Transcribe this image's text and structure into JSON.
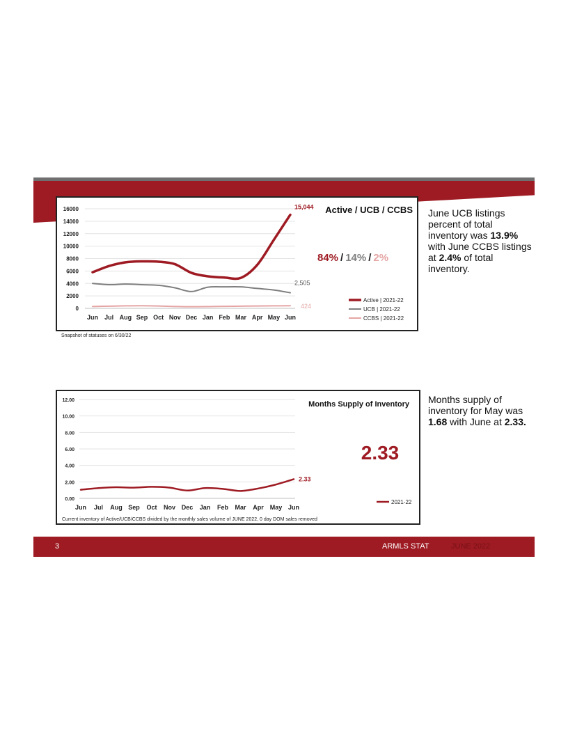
{
  "page": {
    "number": "3",
    "brand": "ARMLS STAT",
    "month": "JUNE 2022",
    "accent": "#9e1b23"
  },
  "inventory": {
    "note": "Snapshot of statuses on 6/30/22",
    "side": {
      "p1": "June UCB listings percent of total inventory was ",
      "v1": "13.9%",
      "p2": " with June CCBS listings at ",
      "v2": "2.4%",
      "p3": " of total inventory."
    }
  },
  "supply": {
    "note": "Current inventory of Active/UCB/CCBS divided by the monthly sales volume of JUNE 2022, 0 day DOM sales removed",
    "side": {
      "p1": "Months supply of inventory for May was ",
      "v1": "1.68",
      "p2": " with June at ",
      "v2": "2.33."
    }
  },
  "chart_data": [
    {
      "type": "line",
      "title": "Active / UCB / CCBS",
      "categories": [
        "Jun",
        "Jul",
        "Aug",
        "Sep",
        "Oct",
        "Nov",
        "Dec",
        "Jan",
        "Feb",
        "Mar",
        "Apr",
        "May",
        "Jun"
      ],
      "yticks": [
        "0",
        "2000",
        "4000",
        "6000",
        "8000",
        "10000",
        "12000",
        "14000",
        "16000"
      ],
      "ylim": [
        0,
        16000
      ],
      "grid": true,
      "legend_position": "bottom-right",
      "series": [
        {
          "name": "Active | 2021-22",
          "color": "#9e1b23",
          "values": [
            5800,
            6800,
            7400,
            7550,
            7500,
            7100,
            5700,
            5150,
            4950,
            4900,
            7000,
            11000,
            15044
          ],
          "end_label": "15,044"
        },
        {
          "name": "UCB | 2021-22",
          "color": "#7f7f7f",
          "values": [
            4000,
            3800,
            3900,
            3800,
            3700,
            3300,
            2700,
            3400,
            3450,
            3450,
            3200,
            2950,
            2505
          ],
          "end_label": "2,505"
        },
        {
          "name": "CCBS | 2021-22",
          "color": "#e6a5a5",
          "values": [
            300,
            350,
            400,
            420,
            380,
            300,
            260,
            280,
            320,
            350,
            380,
            400,
            424
          ],
          "end_label": "424"
        }
      ],
      "shares": [
        {
          "text": "84%",
          "color": "#9e1b23"
        },
        {
          "text": "14%",
          "color": "#7f7f7f"
        },
        {
          "text": "2%",
          "color": "#e6a5a5"
        }
      ],
      "share_sep": "/"
    },
    {
      "type": "line",
      "title": "Months Supply of Inventory",
      "categories": [
        "Jun",
        "Jul",
        "Aug",
        "Sep",
        "Oct",
        "Nov",
        "Dec",
        "Jan",
        "Feb",
        "Mar",
        "Apr",
        "May",
        "Jun"
      ],
      "yticks": [
        "0.00",
        "2.00",
        "4.00",
        "6.00",
        "8.00",
        "10.00",
        "12.00"
      ],
      "ylim": [
        0,
        12
      ],
      "grid": true,
      "legend_position": "bottom-right",
      "big_value": "2.33",
      "series": [
        {
          "name": "2021-22",
          "color": "#9e1b23",
          "values": [
            1.05,
            1.25,
            1.35,
            1.3,
            1.4,
            1.3,
            0.95,
            1.25,
            1.15,
            0.9,
            1.2,
            1.68,
            2.33
          ],
          "end_label": "2.33"
        }
      ]
    }
  ]
}
